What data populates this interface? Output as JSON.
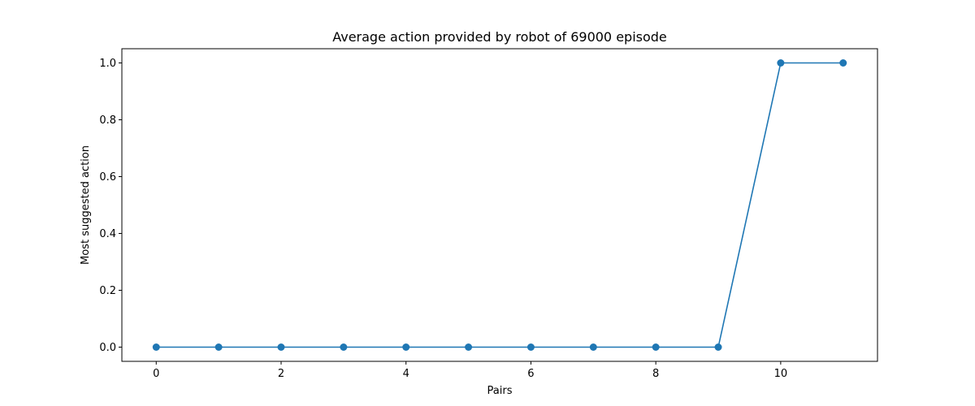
{
  "chart_data": {
    "type": "line",
    "title": "Average action provided by robot of 69000 episode",
    "xlabel": "Pairs",
    "ylabel": "Most suggested action",
    "x": [
      0,
      1,
      2,
      3,
      4,
      5,
      6,
      7,
      8,
      9,
      10,
      11
    ],
    "series": [
      {
        "values": [
          0,
          0,
          0,
          0,
          0,
          0,
          0,
          0,
          0,
          0,
          1,
          1
        ],
        "color": "#1f77b4",
        "marker": "circle"
      }
    ],
    "xlim": [
      -0.55,
      11.55
    ],
    "ylim": [
      -0.05,
      1.05
    ],
    "xticks": [
      0,
      2,
      4,
      6,
      8,
      10
    ],
    "yticks": [
      0.0,
      0.2,
      0.4,
      0.6,
      0.8,
      1.0
    ],
    "ytick_labels": [
      "0.0",
      "0.2",
      "0.4",
      "0.6",
      "0.8",
      "1.0"
    ],
    "grid": false,
    "legend": false
  }
}
